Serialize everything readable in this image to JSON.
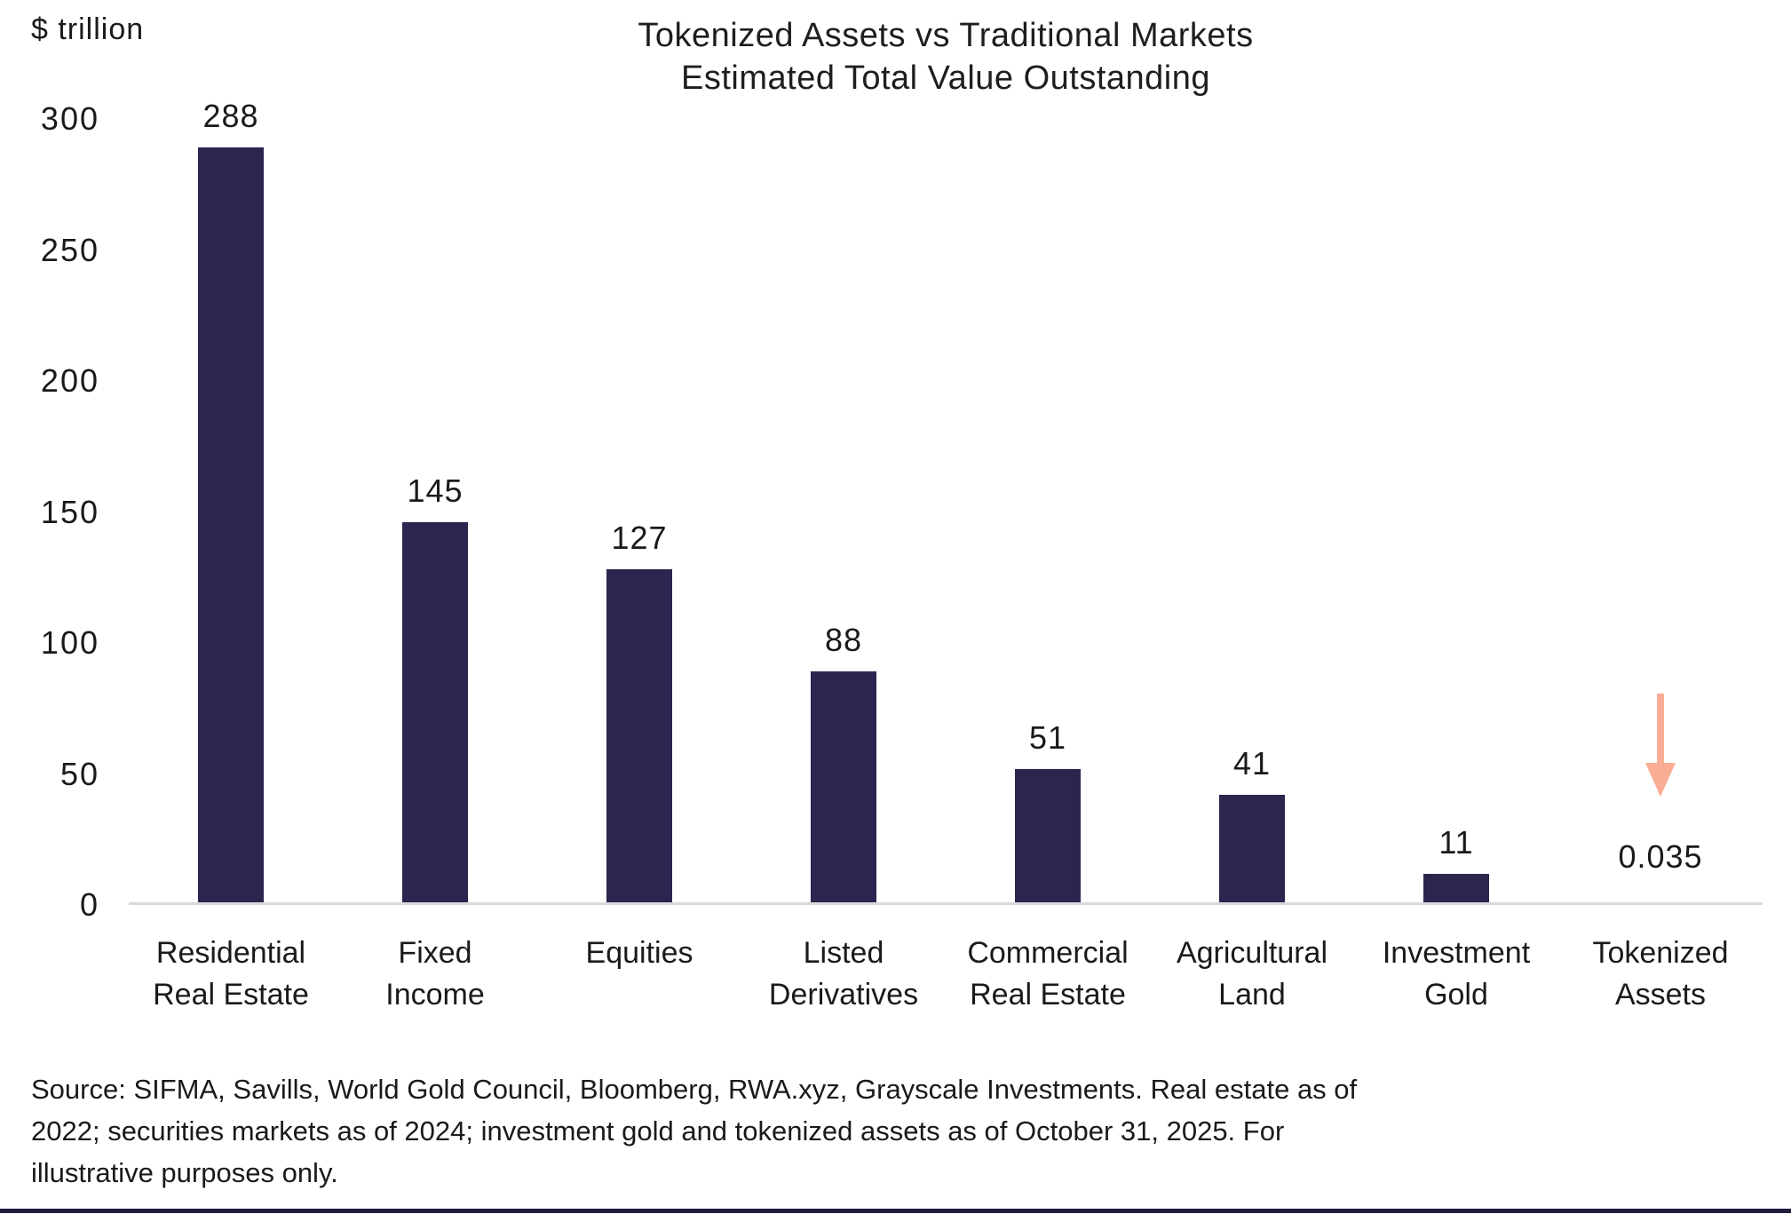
{
  "header": {
    "unit_label": "$ trillion",
    "title": "Tokenized Assets vs Traditional Markets",
    "subtitle": "Estimated Total Value Outstanding"
  },
  "chart_data": {
    "type": "bar",
    "title": "Tokenized Assets vs Traditional Markets",
    "subtitle": "Estimated Total Value Outstanding",
    "ylabel": "$ trillion",
    "xlabel": "",
    "ylim": [
      0,
      300
    ],
    "yticks": [
      0,
      50,
      100,
      150,
      200,
      250,
      300
    ],
    "grid": false,
    "legend": "none",
    "categories": [
      "Residential\nReal Estate",
      "Fixed\nIncome",
      "Equities",
      "Listed\nDerivatives",
      "Commercial\nReal Estate",
      "Agricultural\nLand",
      "Investment\nGold",
      "Tokenized\nAssets"
    ],
    "values": [
      288,
      145,
      127,
      88,
      51,
      41,
      11,
      0.035
    ],
    "value_labels": [
      "288",
      "145",
      "127",
      "88",
      "51",
      "41",
      "11",
      "0.035"
    ],
    "annotation": {
      "type": "down-arrow",
      "target_category": "Tokenized Assets",
      "color": "#f9ad94"
    }
  },
  "colors": {
    "bar": "#2d2450",
    "arrow": "#f9ad94",
    "axis_line": "#d9d9d9",
    "text": "#1a1a1a",
    "bottom_bar": "#221a3f"
  },
  "footer": {
    "source_lines": [
      "Source: SIFMA, Savills, World Gold Council, Bloomberg, RWA.xyz, Grayscale Investments. Real estate as of",
      "2022; securities markets as of 2024; investment gold and tokenized assets as of October 31, 2025. For",
      "illustrative purposes only."
    ]
  }
}
